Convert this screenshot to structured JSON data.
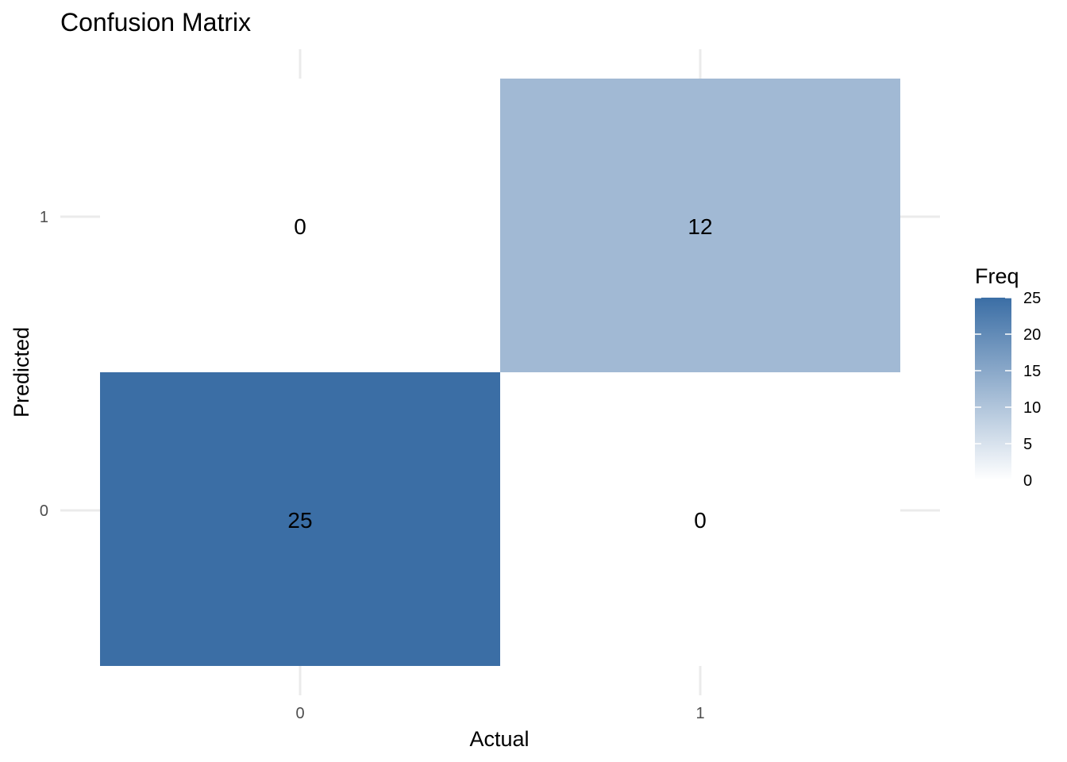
{
  "chart_data": {
    "type": "heatmap",
    "title": "Confusion Matrix",
    "xlabel": "Actual",
    "ylabel": "Predicted",
    "x_categories": [
      "0",
      "1"
    ],
    "y_categories": [
      "0",
      "1"
    ],
    "cells": [
      {
        "actual": "0",
        "predicted": "0",
        "freq": 25,
        "label": "25"
      },
      {
        "actual": "1",
        "predicted": "0",
        "freq": 0,
        "label": "0"
      },
      {
        "actual": "0",
        "predicted": "1",
        "freq": 0,
        "label": "0"
      },
      {
        "actual": "1",
        "predicted": "1",
        "freq": 12,
        "label": "12"
      }
    ],
    "grid": true,
    "legend": {
      "title": "Freq",
      "position": "right",
      "range": [
        0,
        25
      ],
      "ticks": [
        "0",
        "5",
        "10",
        "15",
        "20",
        "25"
      ],
      "low_color": "#ffffff",
      "high_color": "#3b6ea5"
    }
  }
}
